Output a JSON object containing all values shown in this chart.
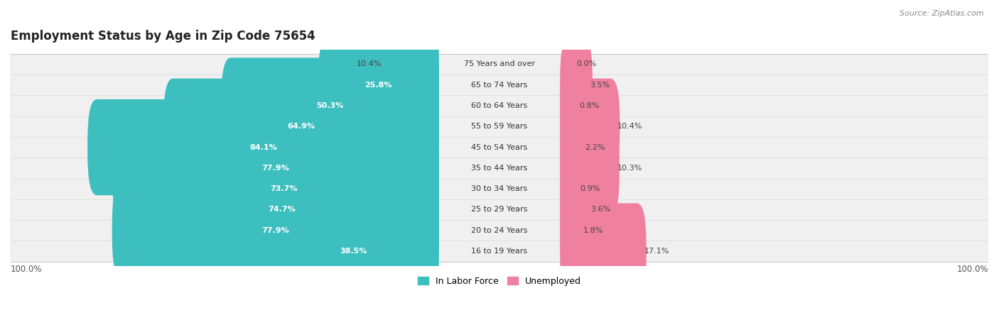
{
  "title": "Employment Status by Age in Zip Code 75654",
  "source": "Source: ZipAtlas.com",
  "categories": [
    "16 to 19 Years",
    "20 to 24 Years",
    "25 to 29 Years",
    "30 to 34 Years",
    "35 to 44 Years",
    "45 to 54 Years",
    "55 to 59 Years",
    "60 to 64 Years",
    "65 to 74 Years",
    "75 Years and over"
  ],
  "labor_force": [
    38.5,
    77.9,
    74.7,
    73.7,
    77.9,
    84.1,
    64.9,
    50.3,
    25.8,
    10.4
  ],
  "unemployed": [
    17.1,
    1.8,
    3.6,
    0.9,
    10.3,
    2.2,
    10.4,
    0.8,
    3.5,
    0.0
  ],
  "labor_force_color": "#3DBFBF",
  "unemployed_color": "#F080A0",
  "row_bg_color": "#F0F0F0",
  "title_fontsize": 12,
  "axis_max": 100,
  "legend_labels": [
    "In Labor Force",
    "Unemployed"
  ]
}
